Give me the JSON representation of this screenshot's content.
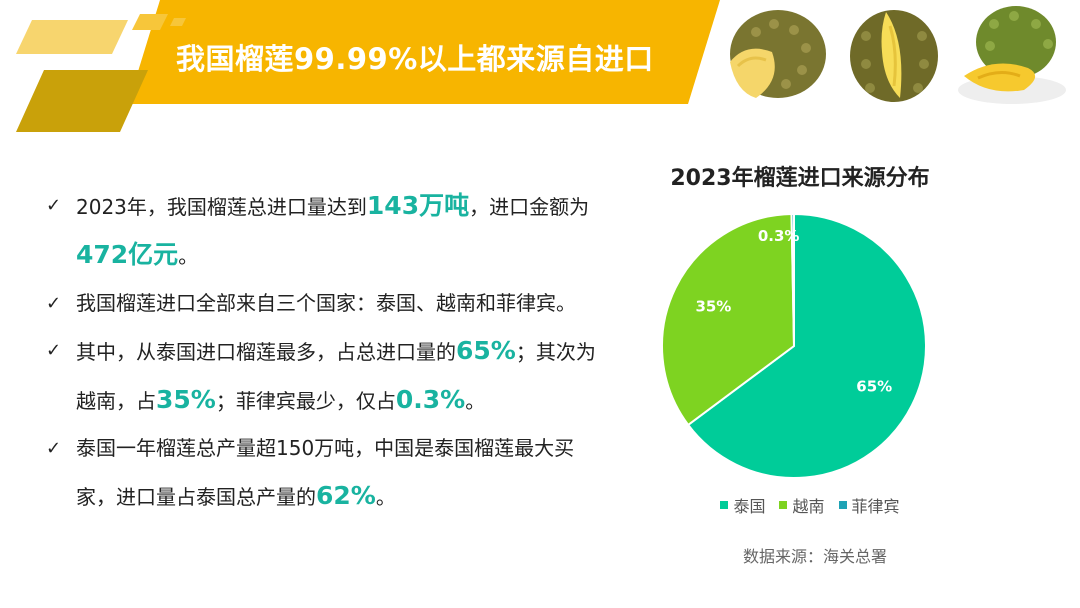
{
  "header": {
    "title": "我国榴莲99.99%以上都来源自进口",
    "colors": {
      "banner": "#f7b500",
      "accent_dark": "#c9a10a",
      "accent_light": "#f7d56e"
    },
    "images": [
      "durian-open-icon",
      "durian-split-icon",
      "durian-plate-icon"
    ]
  },
  "bullets": [
    {
      "parts": [
        {
          "t": "2023年，我国榴莲总进口量达到"
        },
        {
          "t": "143万吨",
          "hl": true
        },
        {
          "t": "，进口金额为"
        },
        {
          "t": "472亿元",
          "hl": true
        },
        {
          "t": "。"
        }
      ]
    },
    {
      "parts": [
        {
          "t": "我国榴莲进口全部来自三个国家：泰国、越南和菲律宾。"
        }
      ]
    },
    {
      "parts": [
        {
          "t": "其中，从泰国进口榴莲最多，占总进口量的"
        },
        {
          "t": "65%",
          "hl": true
        },
        {
          "t": "；其次为越南，占"
        },
        {
          "t": "35%",
          "hl": true
        },
        {
          "t": "；菲律宾最少，仅占"
        },
        {
          "t": "0.3%",
          "hl": true
        },
        {
          "t": "。"
        }
      ]
    },
    {
      "parts": [
        {
          "t": "泰国一年榴莲总产量超150万吨，中国是泰国榴莲最大买家，进口量占泰国总产量的"
        },
        {
          "t": "62%",
          "hl": true
        },
        {
          "t": "。"
        }
      ]
    }
  ],
  "chart_data": {
    "type": "pie",
    "title": "2023年榴莲进口来源分布",
    "categories": [
      "泰国",
      "越南",
      "菲律宾"
    ],
    "values": [
      65,
      35,
      0.3
    ],
    "labels": [
      "65%",
      "35%",
      "0.3%"
    ],
    "colors": [
      "#00cc99",
      "#7ed321",
      "#1fa3b5"
    ],
    "legend_position": "bottom"
  },
  "source": "数据来源：海关总署"
}
